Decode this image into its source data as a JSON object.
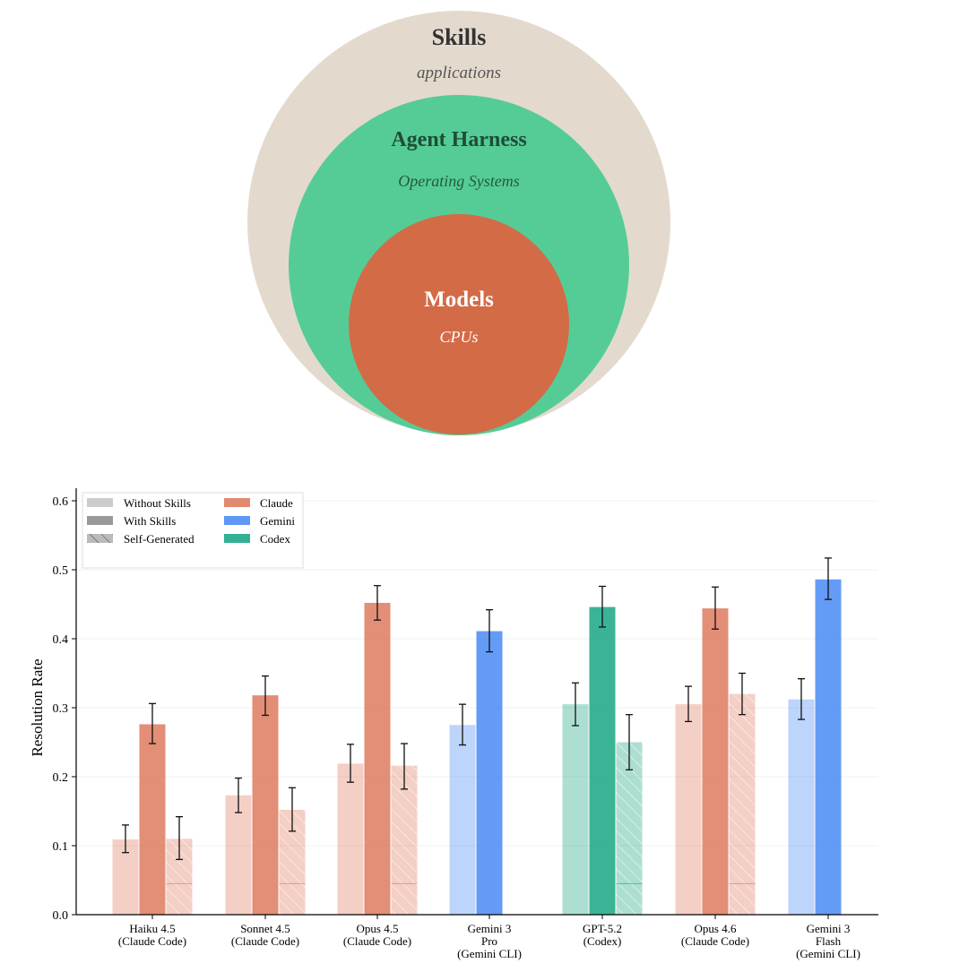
{
  "diagram": {
    "layers": [
      {
        "title": "Skills",
        "subtitle": "applications",
        "color": "#e3dacd"
      },
      {
        "title": "Agent Harness",
        "subtitle": "Operating Systems",
        "color": "#55cc96"
      },
      {
        "title": "Models",
        "subtitle": "CPUs",
        "color": "#d36b47"
      }
    ]
  },
  "chart_data": {
    "type": "bar",
    "title": "",
    "xlabel": "",
    "ylabel": "Resolution Rate",
    "ylim": [
      0,
      0.62
    ],
    "yticks": [
      "0.0",
      "0.1",
      "0.2",
      "0.3",
      "0.4",
      "0.5",
      "0.6"
    ],
    "grid": true,
    "legend_placement": "top-left",
    "legend": {
      "conditions": [
        "Without Skills",
        "With Skills",
        "Self-Generated"
      ],
      "agents": [
        {
          "name": "Claude",
          "color": "#dd7558"
        },
        {
          "name": "Gemini",
          "color": "#4285f4"
        },
        {
          "name": "Codex",
          "color": "#10a37f"
        }
      ]
    },
    "categories": [
      {
        "label": [
          "Haiku 4.5",
          "(Claude Code)"
        ],
        "agent": "Claude"
      },
      {
        "label": [
          "Sonnet 4.5",
          "(Claude Code)"
        ],
        "agent": "Claude"
      },
      {
        "label": [
          "Opus 4.5",
          "(Claude Code)"
        ],
        "agent": "Claude"
      },
      {
        "label": [
          "Gemini 3",
          "Pro",
          "(Gemini CLI)"
        ],
        "agent": "Gemini"
      },
      {
        "label": [
          "GPT-5.2",
          "(Codex)"
        ],
        "agent": "Codex"
      },
      {
        "label": [
          "Opus 4.6",
          "(Claude Code)"
        ],
        "agent": "Claude"
      },
      {
        "label": [
          "Gemini 3",
          "Flash",
          "(Gemini CLI)"
        ],
        "agent": "Gemini"
      }
    ],
    "series": [
      {
        "name": "Without Skills",
        "values": [
          0.109,
          0.173,
          0.219,
          0.275,
          0.305,
          0.305,
          0.312
        ],
        "err_low": [
          0.09,
          0.148,
          0.192,
          0.246,
          0.274,
          0.28,
          0.283
        ],
        "err_high": [
          0.13,
          0.198,
          0.247,
          0.305,
          0.336,
          0.331,
          0.342
        ]
      },
      {
        "name": "With Skills",
        "values": [
          0.276,
          0.318,
          0.452,
          0.411,
          0.446,
          0.444,
          0.486
        ],
        "err_low": [
          0.248,
          0.289,
          0.427,
          0.381,
          0.417,
          0.414,
          0.457
        ],
        "err_high": [
          0.306,
          0.346,
          0.477,
          0.442,
          0.476,
          0.475,
          0.517
        ]
      },
      {
        "name": "Self-Generated",
        "values": [
          0.11,
          0.152,
          0.216,
          null,
          0.25,
          0.32,
          null
        ],
        "err_low": [
          0.08,
          0.121,
          0.182,
          null,
          0.21,
          0.29,
          null
        ],
        "err_high": [
          0.142,
          0.184,
          0.248,
          null,
          0.29,
          0.35,
          null
        ]
      }
    ]
  }
}
